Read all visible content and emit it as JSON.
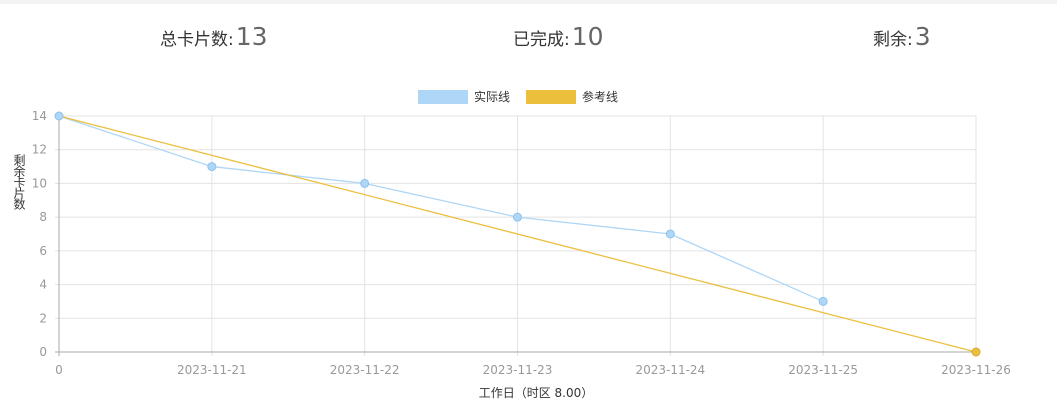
{
  "stats": {
    "total_label": "总卡片数:",
    "total": "13",
    "done_label": "已完成:",
    "done": "10",
    "remaining_label": "剩余:",
    "remaining": "3"
  },
  "chart_data": {
    "type": "line",
    "categories": [
      "0",
      "2023-11-21",
      "2023-11-22",
      "2023-11-23",
      "2023-11-24",
      "2023-11-25",
      "2023-11-26"
    ],
    "series": [
      {
        "name": "实际线",
        "color": "#aed6f6",
        "values": [
          14,
          11,
          10,
          8,
          7,
          3,
          null
        ]
      },
      {
        "name": "参考线",
        "color": "#ebbf3c",
        "values": [
          14,
          null,
          null,
          null,
          null,
          null,
          0
        ]
      }
    ],
    "xlabel": "工作日（时区 8.00）",
    "ylabel": "剩余卡片数",
    "ylim": [
      0,
      14
    ],
    "yticks": [
      0,
      2,
      4,
      6,
      8,
      10,
      12,
      14
    ],
    "grid": true,
    "legend": "top-center"
  }
}
